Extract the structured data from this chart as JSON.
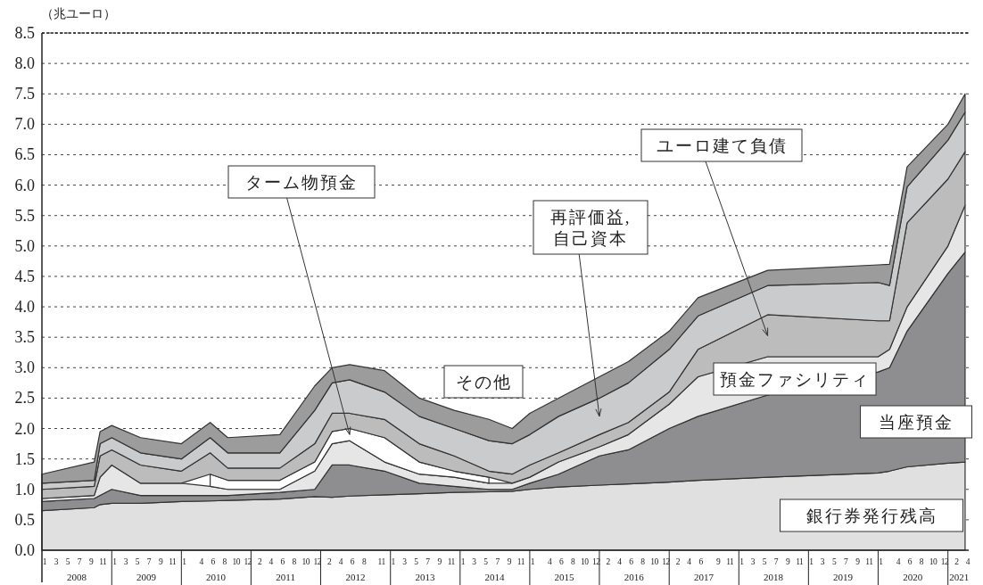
{
  "chart_data": {
    "type": "area",
    "stacked": true,
    "ylabel": "（兆ユーロ）",
    "x": [
      "2008-01",
      "2008-10",
      "2008-11",
      "2009-01",
      "2009-06",
      "2010-01",
      "2010-06",
      "2010-09",
      "2011-06",
      "2011-12",
      "2012-03",
      "2012-06",
      "2012-12",
      "2013-06",
      "2013-12",
      "2014-06",
      "2014-10",
      "2015-01",
      "2015-06",
      "2016-01",
      "2016-06",
      "2017-01",
      "2017-06",
      "2018-06",
      "2020-01",
      "2020-03",
      "2020-06",
      "2021-01",
      "2021-04"
    ],
    "series": [
      {
        "name": "銀行券発行残高",
        "color": "#e0e0e0",
        "values": [
          0.65,
          0.7,
          0.75,
          0.77,
          0.77,
          0.8,
          0.81,
          0.82,
          0.84,
          0.88,
          0.87,
          0.89,
          0.91,
          0.93,
          0.95,
          0.96,
          0.97,
          1.0,
          1.04,
          1.07,
          1.09,
          1.12,
          1.15,
          1.2,
          1.27,
          1.3,
          1.37,
          1.43,
          1.45
        ]
      },
      {
        "name": "当座預金",
        "color": "#8e8e90",
        "values": [
          0.15,
          0.15,
          0.15,
          0.23,
          0.13,
          0.1,
          0.09,
          0.08,
          0.11,
          0.12,
          0.53,
          0.51,
          0.39,
          0.17,
          0.1,
          0.04,
          0.03,
          0.1,
          0.21,
          0.48,
          0.56,
          0.88,
          1.05,
          1.35,
          1.66,
          1.7,
          2.23,
          3.12,
          3.45
        ]
      },
      {
        "name": "預金ファシリティ",
        "color": "#e6e6e6",
        "values": [
          0.05,
          0.05,
          0.3,
          0.4,
          0.2,
          0.2,
          0.15,
          0.1,
          0.05,
          0.3,
          0.35,
          0.4,
          0.15,
          0.15,
          0.15,
          0.1,
          0.1,
          0.1,
          0.2,
          0.15,
          0.25,
          0.4,
          0.65,
          0.63,
          0.25,
          0.3,
          0.4,
          0.45,
          0.77
        ]
      },
      {
        "name": "ターム物預金",
        "color": "#ffffff",
        "values": [
          null,
          null,
          null,
          null,
          null,
          null,
          0.2,
          0.15,
          0.15,
          0.15,
          0.2,
          0.2,
          0.4,
          0.2,
          0.1,
          0.1,
          null,
          null,
          null,
          null,
          null,
          null,
          null,
          null,
          null,
          null,
          null,
          null,
          null
        ]
      },
      {
        "name": "ユーロ建て負債",
        "color": "#bcbcbc",
        "values": [
          0.15,
          0.15,
          0.35,
          0.25,
          0.3,
          0.2,
          0.35,
          0.2,
          0.2,
          0.3,
          0.3,
          0.25,
          0.3,
          0.3,
          0.25,
          0.1,
          0.15,
          0.2,
          0.15,
          0.2,
          0.2,
          0.2,
          0.45,
          0.69,
          0.59,
          0.47,
          1.38,
          1.1,
          0.88
        ]
      },
      {
        "name": "再評価益,\n自己資本",
        "color": "#cacbcd",
        "values": [
          0.1,
          0.1,
          0.2,
          0.2,
          0.2,
          0.2,
          0.25,
          0.25,
          0.25,
          0.55,
          0.5,
          0.55,
          0.45,
          0.45,
          0.45,
          0.5,
          0.5,
          0.5,
          0.6,
          0.6,
          0.65,
          0.7,
          0.55,
          0.48,
          0.63,
          0.58,
          0.59,
          0.64,
          0.65
        ]
      },
      {
        "name": "その他",
        "color": "#9c9c9c",
        "values": [
          0.15,
          0.3,
          0.2,
          0.2,
          0.25,
          0.25,
          0.25,
          0.25,
          0.3,
          0.4,
          0.25,
          0.25,
          0.35,
          0.3,
          0.3,
          0.35,
          0.25,
          0.35,
          0.3,
          0.35,
          0.35,
          0.3,
          0.3,
          0.25,
          0.29,
          0.35,
          0.33,
          0.26,
          0.3
        ]
      }
    ],
    "ylim": [
      0,
      8.5
    ],
    "yticks": [
      {
        "value": 0,
        "label": "0.0"
      },
      {
        "value": 0.5,
        "label": "0.5"
      },
      {
        "value": 1,
        "label": "1.0"
      },
      {
        "value": 1.5,
        "label": "1.5"
      },
      {
        "value": 2,
        "label": "2.0"
      },
      {
        "value": 2.5,
        "label": "2.5"
      },
      {
        "value": 3,
        "label": "3.0"
      },
      {
        "value": 3.5,
        "label": "3.5"
      },
      {
        "value": 4,
        "label": "4.0"
      },
      {
        "value": 4.5,
        "label": "4.5"
      },
      {
        "value": 5,
        "label": "5.0"
      },
      {
        "value": 5.5,
        "label": "5.5"
      },
      {
        "value": 6,
        "label": "6.0"
      },
      {
        "value": 6.5,
        "label": "6.5"
      },
      {
        "value": 7,
        "label": "7.0"
      },
      {
        "value": 7.5,
        "label": "7.5"
      },
      {
        "value": 8,
        "label": "8.0"
      },
      {
        "value": 8.5,
        "label": "8.5"
      }
    ],
    "xlim": [
      "2008-01",
      "2021-04-20"
    ],
    "x2lim": [
      "2008-01",
      "2021-04-20"
    ],
    "xticks": [
      {
        "value": "2008-01-15",
        "label": "1"
      },
      {
        "value": "2008-03-15",
        "label": "3"
      },
      {
        "value": "2008-05-15",
        "label": "5"
      },
      {
        "value": "2008-07-15",
        "label": "7"
      },
      {
        "value": "2008-09-15",
        "label": "9"
      },
      {
        "value": "2008-11-15",
        "label": "11"
      },
      {
        "value": "2009-01-15",
        "label": "1"
      },
      {
        "value": "2009-03-15",
        "label": "3"
      },
      {
        "value": "2009-05-15",
        "label": "5"
      },
      {
        "value": "2009-07-15",
        "label": "7"
      },
      {
        "value": "2009-09-15",
        "label": "9"
      },
      {
        "value": "2009-11-15",
        "label": "11"
      },
      {
        "value": "2010-01-15",
        "label": "1"
      },
      {
        "value": "2010-04-15",
        "label": "4"
      },
      {
        "value": "2010-06-15",
        "label": "6"
      },
      {
        "value": "2010-08-15",
        "label": "8"
      },
      {
        "value": "2010-10-15",
        "label": "10"
      },
      {
        "value": "2010-12-15",
        "label": "12"
      },
      {
        "value": "2011-02-15",
        "label": "2"
      },
      {
        "value": "2011-04-15",
        "label": "4"
      },
      {
        "value": "2011-06-15",
        "label": "6"
      },
      {
        "value": "2011-08-15",
        "label": "8"
      },
      {
        "value": "2011-10-15",
        "label": "10"
      },
      {
        "value": "2011-12-15",
        "label": "12"
      },
      {
        "value": "2012-02-15",
        "label": "2"
      },
      {
        "value": "2012-04-15",
        "label": "4"
      },
      {
        "value": "2012-06-15",
        "label": "6"
      },
      {
        "value": "2012-08-15",
        "label": "8"
      },
      {
        "value": "2012-11-15",
        "label": "11"
      },
      {
        "value": "2013-01-15",
        "label": "1"
      },
      {
        "value": "2013-03-15",
        "label": "3"
      },
      {
        "value": "2013-05-15",
        "label": "5"
      },
      {
        "value": "2013-07-15",
        "label": "7"
      },
      {
        "value": "2013-09-15",
        "label": "9"
      },
      {
        "value": "2013-11-15",
        "label": "11"
      },
      {
        "value": "2014-01-15",
        "label": "1"
      },
      {
        "value": "2014-03-15",
        "label": "3"
      },
      {
        "value": "2014-05-15",
        "label": "5"
      },
      {
        "value": "2014-07-15",
        "label": "7"
      },
      {
        "value": "2014-09-15",
        "label": "9"
      },
      {
        "value": "2014-11-15",
        "label": "11"
      },
      {
        "value": "2015-01-15",
        "label": "1"
      },
      {
        "value": "2015-04-15",
        "label": "4"
      },
      {
        "value": "2015-06-15",
        "label": "6"
      },
      {
        "value": "2015-08-15",
        "label": "8"
      },
      {
        "value": "2015-10-15",
        "label": "10"
      },
      {
        "value": "2015-12-15",
        "label": "12"
      },
      {
        "value": "2016-02-15",
        "label": "2"
      },
      {
        "value": "2016-04-15",
        "label": "4"
      },
      {
        "value": "2016-06-15",
        "label": "6"
      },
      {
        "value": "2016-08-15",
        "label": "8"
      },
      {
        "value": "2016-10-15",
        "label": "10"
      },
      {
        "value": "2016-12-15",
        "label": "12"
      },
      {
        "value": "2017-02-15",
        "label": "2"
      },
      {
        "value": "2017-04-15",
        "label": "4"
      },
      {
        "value": "2017-06-15",
        "label": "6"
      },
      {
        "value": "2017-09-15",
        "label": "9"
      },
      {
        "value": "2017-11-15",
        "label": "11"
      },
      {
        "value": "2018-01-15",
        "label": "1"
      },
      {
        "value": "2018-03-15",
        "label": "3"
      },
      {
        "value": "2018-05-15",
        "label": "5"
      },
      {
        "value": "2018-07-15",
        "label": "7"
      },
      {
        "value": "2018-09-15",
        "label": "9"
      },
      {
        "value": "2018-11-15",
        "label": "11"
      },
      {
        "value": "2019-01-15",
        "label": "1"
      },
      {
        "value": "2019-03-15",
        "label": "3"
      },
      {
        "value": "2019-05-15",
        "label": "5"
      },
      {
        "value": "2019-07-15",
        "label": "7"
      },
      {
        "value": "2019-09-15",
        "label": "9"
      },
      {
        "value": "2019-11-15",
        "label": "11"
      },
      {
        "value": "2020-01-15",
        "label": "1"
      },
      {
        "value": "2020-04-15",
        "label": "4"
      },
      {
        "value": "2020-06-15",
        "label": "6"
      },
      {
        "value": "2020-08-15",
        "label": "8"
      },
      {
        "value": "2020-10-15",
        "label": "10"
      },
      {
        "value": "2020-12-15",
        "label": "12"
      },
      {
        "value": "2021-02-15",
        "label": "2"
      },
      {
        "value": "2021-04-15",
        "label": "4"
      }
    ],
    "x2ticks": [
      {
        "value": "2008-07",
        "label": "2008"
      },
      {
        "value": "2009-07",
        "label": "2009"
      },
      {
        "value": "2010-07",
        "label": "2010"
      },
      {
        "value": "2011-07",
        "label": "2011"
      },
      {
        "value": "2012-07",
        "label": "2012"
      },
      {
        "value": "2013-07",
        "label": "2013"
      },
      {
        "value": "2014-07",
        "label": "2014"
      },
      {
        "value": "2015-07",
        "label": "2015"
      },
      {
        "value": "2016-07",
        "label": "2016"
      },
      {
        "value": "2017-07",
        "label": "2017"
      },
      {
        "value": "2018-07",
        "label": "2018"
      },
      {
        "value": "2019-07",
        "label": "2019"
      },
      {
        "value": "2020-07",
        "label": "2020"
      },
      {
        "value": "2021-03",
        "label": "2021"
      }
    ],
    "grid": "y"
  }
}
